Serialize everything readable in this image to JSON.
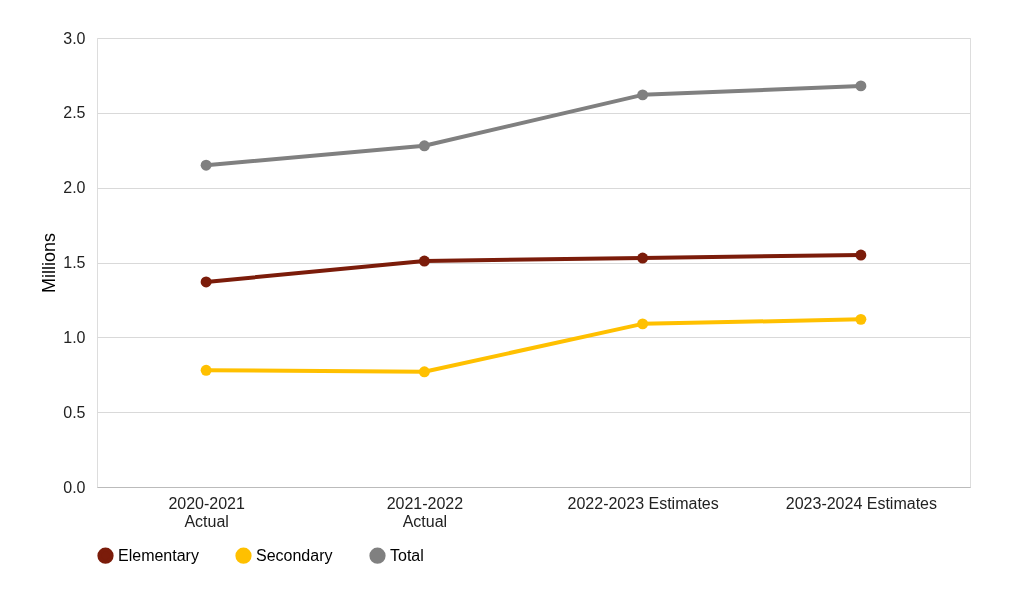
{
  "chart_data": {
    "type": "line",
    "ylabel": "Millions",
    "categories": [
      "2020-2021\nActual",
      "2021-2022\nActual",
      "2022-2023 Estimates",
      "2023-2024 Estimates"
    ],
    "series": [
      {
        "name": "Elementary",
        "color": "#7b1c0a",
        "values": [
          1.37,
          1.51,
          1.53,
          1.55
        ]
      },
      {
        "name": "Secondary",
        "color": "#ffc000",
        "values": [
          0.78,
          0.77,
          1.09,
          1.12
        ]
      },
      {
        "name": "Total",
        "color": "#808080",
        "values": [
          2.15,
          2.28,
          2.62,
          2.68
        ]
      }
    ],
    "ylim": [
      0,
      3
    ],
    "yticks": [
      {
        "value": 0,
        "label": "0.0"
      },
      0.5,
      {
        "value": 1,
        "label": "1.0"
      },
      1.5,
      {
        "value": 2,
        "label": "2.0"
      },
      2.5,
      {
        "value": 3,
        "label": "3.0"
      }
    ],
    "grid": "y",
    "legend": "bottom",
    "marker": "circle",
    "line_style": "solid"
  }
}
